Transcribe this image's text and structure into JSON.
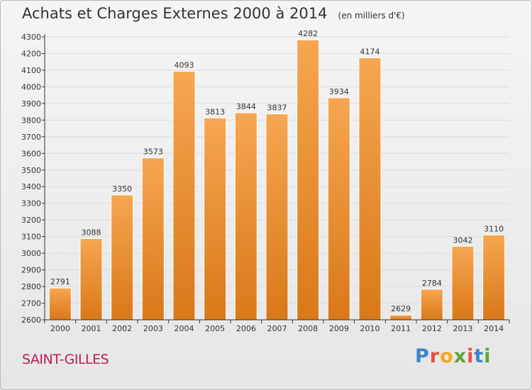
{
  "title": "Achats et Charges Externes 2000 à 2014",
  "unit_note": "(en milliers d'€)",
  "location": "SAINT-GILLES",
  "brand": {
    "letters": [
      "P",
      "r",
      "o",
      "x",
      "i",
      "t",
      "i"
    ],
    "colors": [
      "#3b86c9",
      "#e94e3d",
      "#f2a81d",
      "#5aa832",
      "#e94e3d",
      "#3b86c9",
      "#5aa832"
    ]
  },
  "colors": {
    "bar_light": "#f6a651",
    "bar_dark": "#d97818",
    "bar_edge": "#ffffff",
    "grid": "#dcdcdc",
    "axis": "#333333",
    "text": "#333333"
  },
  "chart_data": {
    "type": "bar",
    "title": "Achats et Charges Externes 2000 à 2014",
    "subtitle": "(en milliers d'€)",
    "categories": [
      "2000",
      "2001",
      "2002",
      "2003",
      "2004",
      "2005",
      "2006",
      "2007",
      "2008",
      "2009",
      "2010",
      "2011",
      "2012",
      "2013",
      "2014"
    ],
    "values": [
      2791,
      3088,
      3350,
      3573,
      4093,
      3813,
      3844,
      3837,
      4282,
      3934,
      4174,
      2629,
      2784,
      3042,
      3110
    ],
    "ylim": [
      2600,
      4300
    ],
    "yticks": [
      2600,
      2700,
      2800,
      2900,
      3000,
      3100,
      3200,
      3300,
      3400,
      3500,
      3600,
      3700,
      3800,
      3900,
      4000,
      4100,
      4200,
      4300
    ],
    "grid": true,
    "legend": "none"
  }
}
